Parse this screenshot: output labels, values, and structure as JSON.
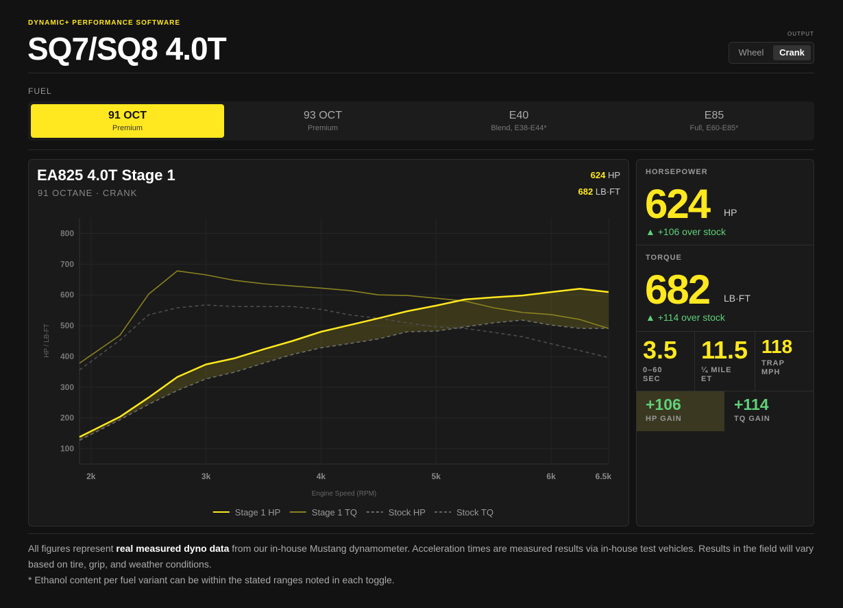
{
  "header": {
    "eyebrow": "DYNAMIC+ PERFORMANCE SOFTWARE",
    "title": "SQ7/SQ8 4.0T",
    "output_label": "OUTPUT",
    "output_options": [
      "Wheel",
      "Crank"
    ]
  },
  "fuel": {
    "label": "FUEL",
    "options": [
      {
        "name": "91 OCT",
        "sub": "Premium"
      },
      {
        "name": "93 OCT",
        "sub": "Premium"
      },
      {
        "name": "E40",
        "sub": "Blend, E38-E44*"
      },
      {
        "name": "E85",
        "sub": "Full, E60-E85*"
      }
    ]
  },
  "chart_data": {
    "type": "line",
    "title": "EA825 4.0T Stage 1",
    "subtitle": "91 OCTANE · CRANK",
    "peaks": [
      {
        "value": 624,
        "unit": "HP"
      },
      {
        "value": 682,
        "unit": "LB·FT"
      }
    ],
    "xlabel": "Engine Speed (RPM)",
    "ylabel": "HP / LB-FT",
    "x": [
      1900,
      2250,
      2500,
      2750,
      3000,
      3250,
      3500,
      3750,
      4000,
      4250,
      4500,
      4750,
      5000,
      5250,
      5500,
      5750,
      6000,
      6250,
      6500
    ],
    "series": [
      {
        "name": "Stage 1 HP",
        "color": "#ffe81f",
        "dashed": false,
        "values": [
          138,
          203,
          266,
          333,
          374,
          394,
          423,
          450,
          480,
          502,
          524,
          547,
          565,
          585,
          592,
          598,
          609,
          620,
          609
        ]
      },
      {
        "name": "Stage 1 TQ",
        "color": "#8a8220",
        "dashed": false,
        "values": [
          378,
          468,
          602,
          678,
          665,
          647,
          636,
          629,
          622,
          614,
          600,
          598,
          589,
          580,
          558,
          543,
          536,
          520,
          491
        ]
      },
      {
        "name": "Stock HP",
        "color": "#6e6e6e",
        "dashed": true,
        "values": [
          127,
          194,
          244,
          289,
          327,
          349,
          378,
          406,
          428,
          442,
          457,
          480,
          482,
          496,
          509,
          518,
          502,
          491,
          491
        ]
      },
      {
        "name": "Stock TQ",
        "color": "#4e4e4e",
        "dashed": true,
        "values": [
          356,
          452,
          535,
          558,
          567,
          562,
          562,
          562,
          553,
          535,
          524,
          509,
          496,
          491,
          478,
          464,
          441,
          419,
          396
        ]
      }
    ],
    "xlim": [
      1900,
      6500
    ],
    "ylim": [
      50,
      850
    ],
    "xticks": [
      {
        "value": 2000,
        "label": "2k"
      },
      {
        "value": 3000,
        "label": "3k"
      },
      {
        "value": 4000,
        "label": "4k"
      },
      {
        "value": 5000,
        "label": "5k"
      },
      {
        "value": 6000,
        "label": "6k"
      },
      {
        "value": 6500,
        "label": "6.5k"
      }
    ],
    "yticks": [
      100,
      200,
      300,
      400,
      500,
      600,
      700,
      800
    ],
    "grid": true
  },
  "stats": {
    "horsepower": {
      "label": "HORSEPOWER",
      "value": 624,
      "unit": "HP",
      "delta": "▲ +106 over stock"
    },
    "torque": {
      "label": "TORQUE",
      "value": 682,
      "unit": "LB·FT",
      "delta": "▲ +114 over stock"
    },
    "metrics": [
      {
        "value": 3.5,
        "label": "0–60 SEC"
      },
      {
        "value": 11.5,
        "label": "¼ MILE ET"
      },
      {
        "value": 118,
        "label": "TRAP MPH"
      }
    ],
    "gains": [
      {
        "value": "+106",
        "label": "HP GAIN"
      },
      {
        "value": "+114",
        "label": "TQ GAIN"
      }
    ]
  },
  "footer": {
    "parts": [
      "All figures represent ",
      "real measured dyno data",
      " from our in-house Mustang dynamometer. Acceleration times are measured results via in-house test vehicles. Results in the field will vary based on tire, grip, and weather conditions."
    ],
    "note": "* Ethanol content per fuel variant can be within the stated ranges noted in each toggle."
  }
}
